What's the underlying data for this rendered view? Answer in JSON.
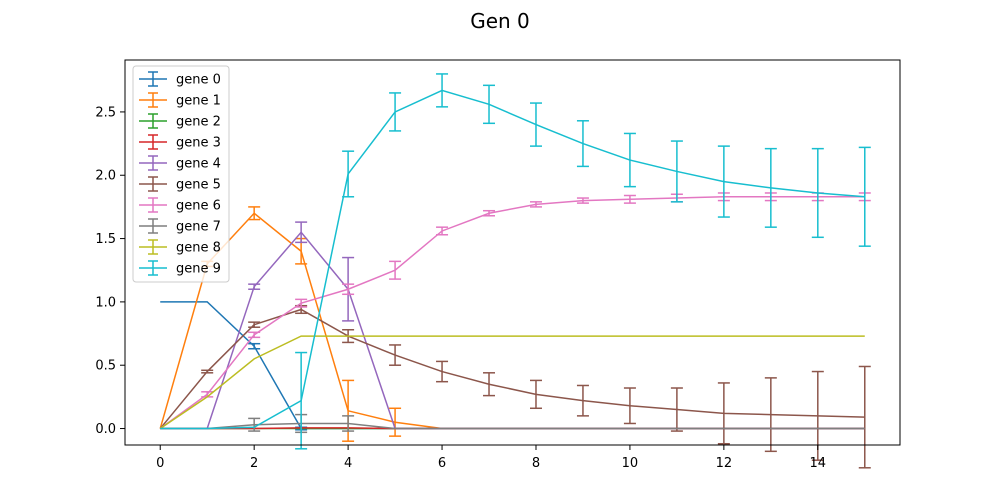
{
  "chart_data": {
    "type": "line",
    "title": "Gen 0",
    "xlabel": "",
    "ylabel": "",
    "xlim": [
      -0.75,
      15.75
    ],
    "ylim": [
      -0.13,
      2.91
    ],
    "xticks": [
      0,
      2,
      4,
      6,
      8,
      10,
      12,
      14
    ],
    "yticks": [
      0.0,
      0.5,
      1.0,
      1.5,
      2.0,
      2.5
    ],
    "ytick_labels": [
      "0.0",
      "0.5",
      "1.0",
      "1.5",
      "2.0",
      "2.5"
    ],
    "grid": false,
    "legend_position": "upper-left",
    "x": [
      0,
      1,
      2,
      3,
      4,
      5,
      6,
      7,
      8,
      9,
      10,
      11,
      12,
      13,
      14,
      15
    ],
    "series": [
      {
        "name": "gene 0",
        "color": "#1f77b4",
        "values": [
          1.0,
          1.0,
          0.65,
          0.0,
          0,
          0,
          0,
          0,
          0,
          0,
          0,
          0,
          0,
          0,
          0,
          0
        ],
        "errors": [
          0.0,
          0.0,
          0.02,
          0.01,
          0,
          0,
          0,
          0,
          0,
          0,
          0,
          0,
          0,
          0,
          0,
          0
        ]
      },
      {
        "name": "gene 1",
        "color": "#ff7f0e",
        "values": [
          0.0,
          1.3,
          1.7,
          1.4,
          0.14,
          0.05,
          0.0,
          0,
          0,
          0,
          0,
          0,
          0,
          0,
          0,
          0
        ],
        "errors": [
          0.0,
          0.02,
          0.05,
          0.1,
          0.24,
          0.11,
          0.0,
          0,
          0,
          0,
          0,
          0,
          0,
          0,
          0,
          0
        ]
      },
      {
        "name": "gene 2",
        "color": "#2ca02c",
        "values": [
          0,
          0,
          0,
          0,
          0,
          0,
          0,
          0,
          0,
          0,
          0,
          0,
          0,
          0,
          0,
          0
        ],
        "errors": [
          0,
          0,
          0,
          0,
          0,
          0,
          0,
          0,
          0,
          0,
          0,
          0,
          0,
          0,
          0,
          0
        ]
      },
      {
        "name": "gene 3",
        "color": "#d62728",
        "values": [
          0,
          0,
          0,
          0.005,
          0.005,
          0,
          0,
          0,
          0,
          0,
          0,
          0,
          0,
          0,
          0,
          0
        ],
        "errors": [
          0,
          0,
          0,
          0,
          0,
          0,
          0,
          0,
          0,
          0,
          0,
          0,
          0,
          0,
          0,
          0
        ]
      },
      {
        "name": "gene 4",
        "color": "#9467bd",
        "values": [
          0.0,
          0.0,
          1.12,
          1.55,
          1.1,
          0.0,
          0,
          0,
          0,
          0,
          0,
          0,
          0,
          0,
          0,
          0
        ],
        "errors": [
          0.0,
          0.0,
          0.02,
          0.08,
          0.25,
          0.0,
          0,
          0,
          0,
          0,
          0,
          0,
          0,
          0,
          0,
          0
        ]
      },
      {
        "name": "gene 5",
        "color": "#8c564b",
        "values": [
          0.0,
          0.45,
          0.82,
          0.94,
          0.73,
          0.58,
          0.45,
          0.35,
          0.27,
          0.22,
          0.18,
          0.15,
          0.12,
          0.11,
          0.1,
          0.09
        ],
        "errors": [
          0.0,
          0.01,
          0.02,
          0.03,
          0.05,
          0.08,
          0.08,
          0.09,
          0.11,
          0.12,
          0.14,
          0.17,
          0.24,
          0.29,
          0.35,
          0.4
        ]
      },
      {
        "name": "gene 6",
        "color": "#e377c2",
        "values": [
          0.0,
          0.27,
          0.74,
          0.99,
          1.1,
          1.25,
          1.56,
          1.7,
          1.77,
          1.8,
          1.81,
          1.82,
          1.83,
          1.83,
          1.83,
          1.83
        ],
        "errors": [
          0.0,
          0.02,
          0.02,
          0.03,
          0.04,
          0.07,
          0.03,
          0.02,
          0.02,
          0.02,
          0.03,
          0.03,
          0.03,
          0.03,
          0.03,
          0.03
        ]
      },
      {
        "name": "gene 7",
        "color": "#7f7f7f",
        "values": [
          0.0,
          0.0,
          0.03,
          0.04,
          0.04,
          0.0,
          0,
          0,
          0,
          0,
          0,
          0,
          0,
          0,
          0,
          0
        ],
        "errors": [
          0.0,
          0.0,
          0.05,
          0.07,
          0.06,
          0.0,
          0,
          0,
          0,
          0,
          0,
          0,
          0,
          0,
          0,
          0
        ]
      },
      {
        "name": "gene 8",
        "color": "#bcbd22",
        "values": [
          0.0,
          0.25,
          0.55,
          0.73,
          0.73,
          0.73,
          0.73,
          0.73,
          0.73,
          0.73,
          0.73,
          0.73,
          0.73,
          0.73,
          0.73,
          0.73
        ],
        "errors": [
          0,
          0,
          0,
          0,
          0,
          0,
          0,
          0,
          0,
          0,
          0,
          0,
          0,
          0,
          0,
          0
        ]
      },
      {
        "name": "gene 9",
        "color": "#17becf",
        "values": [
          0.0,
          0.0,
          0.01,
          0.22,
          2.01,
          2.5,
          2.67,
          2.56,
          2.4,
          2.25,
          2.12,
          2.03,
          1.95,
          1.9,
          1.86,
          1.83
        ],
        "errors": [
          0.0,
          0.0,
          0.0,
          0.38,
          0.18,
          0.15,
          0.13,
          0.15,
          0.17,
          0.18,
          0.21,
          0.24,
          0.28,
          0.31,
          0.35,
          0.39
        ]
      }
    ]
  }
}
